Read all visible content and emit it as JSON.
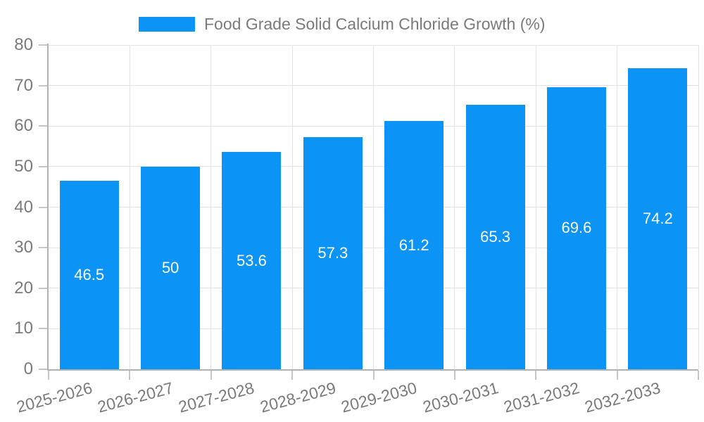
{
  "chart_data": {
    "type": "bar",
    "title": "Food Grade Solid Calcium Chloride Growth (%)",
    "legend_position": "top",
    "categories": [
      "2025-2026",
      "2026-2027",
      "2027-2028",
      "2028-2029",
      "2029-2030",
      "2030-2031",
      "2031-2032",
      "2032-2033"
    ],
    "values": [
      46.5,
      50,
      53.6,
      57.3,
      61.2,
      65.3,
      69.6,
      74.2
    ],
    "value_labels": [
      "46.5",
      "50",
      "53.6",
      "57.3",
      "61.2",
      "65.3",
      "69.6",
      "74.2"
    ],
    "value_label_position": "inside-center",
    "xlabel": "",
    "ylabel": "",
    "ylim": [
      0,
      80
    ],
    "yticks": [
      0,
      10,
      20,
      30,
      40,
      50,
      60,
      70,
      80
    ],
    "grid": true,
    "x_tick_rotation_deg": -15
  },
  "colors": {
    "bar": "#0b93f6",
    "bar_label": "#ffffff",
    "axis_text": "#7a7a7a",
    "grid": "#e3e3e3",
    "axis_line": "#b2b2b2",
    "tick": "#c6c6c6",
    "background": "#ffffff"
  }
}
